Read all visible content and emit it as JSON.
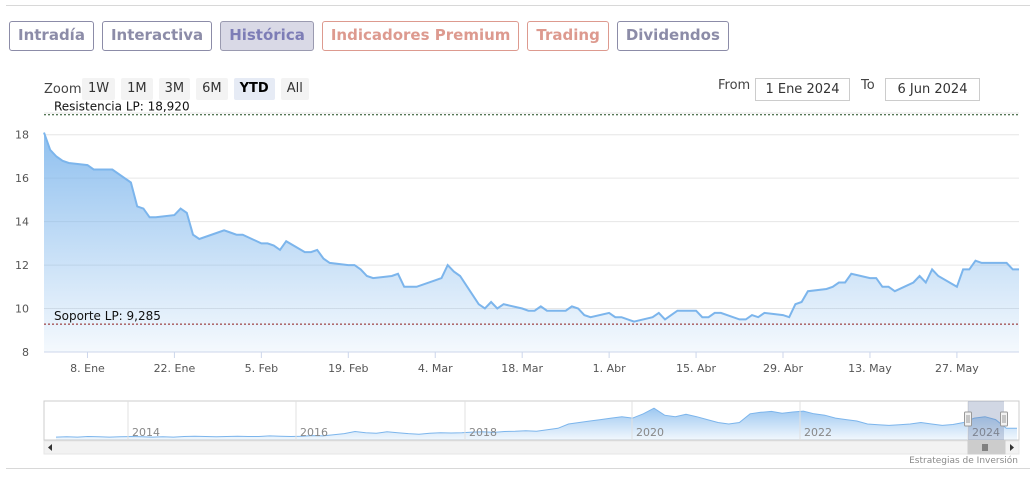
{
  "tabs": [
    {
      "label": "Intradía",
      "color": "#8c8ca8"
    },
    {
      "label": "Interactiva",
      "color": "#8c8ca8"
    },
    {
      "label": "Histórica",
      "color": "#7d7db6",
      "active": true
    },
    {
      "label": "Indicadores Premium",
      "color": "#dd9a8f"
    },
    {
      "label": "Trading",
      "color": "#dd9a8f"
    },
    {
      "label": "Dividendos",
      "color": "#8c8ca8"
    }
  ],
  "zoom": {
    "label": "Zoom",
    "buttons": [
      "1W",
      "1M",
      "3M",
      "6M",
      "YTD",
      "All"
    ],
    "active": "YTD"
  },
  "range": {
    "from_label": "From",
    "from_value": "1 Ene 2024",
    "to_label": "To",
    "to_value": "6 Jun 2024"
  },
  "credits": "Estrategias de Inversión",
  "colors": {
    "series_line": "#7cb5ec",
    "resistance": "#1f4a1f",
    "support": "#8b1a1a"
  },
  "chart_data": {
    "type": "area",
    "ylim": [
      8,
      19
    ],
    "yticks": [
      8,
      10,
      12,
      14,
      16,
      18
    ],
    "grid": true,
    "x_tick_labels": [
      "8. Ene",
      "22. Ene",
      "5. Feb",
      "19. Feb",
      "4. Mar",
      "18. Mar",
      "1. Abr",
      "15. Abr",
      "29. Abr",
      "13. May",
      "27. May"
    ],
    "x_tick_dates": [
      "2024-01-08",
      "2024-01-22",
      "2024-02-05",
      "2024-02-19",
      "2024-03-04",
      "2024-03-18",
      "2024-04-01",
      "2024-04-15",
      "2024-04-29",
      "2024-05-13",
      "2024-05-27"
    ],
    "x": [
      "2024-01-01",
      "2024-01-02",
      "2024-01-03",
      "2024-01-04",
      "2024-01-05",
      "2024-01-08",
      "2024-01-09",
      "2024-01-10",
      "2024-01-11",
      "2024-01-12",
      "2024-01-15",
      "2024-01-16",
      "2024-01-17",
      "2024-01-18",
      "2024-01-19",
      "2024-01-22",
      "2024-01-23",
      "2024-01-24",
      "2024-01-25",
      "2024-01-26",
      "2024-01-29",
      "2024-01-30",
      "2024-01-31",
      "2024-02-01",
      "2024-02-02",
      "2024-02-05",
      "2024-02-06",
      "2024-02-07",
      "2024-02-08",
      "2024-02-09",
      "2024-02-12",
      "2024-02-13",
      "2024-02-14",
      "2024-02-15",
      "2024-02-16",
      "2024-02-19",
      "2024-02-20",
      "2024-02-21",
      "2024-02-22",
      "2024-02-23",
      "2024-02-26",
      "2024-02-27",
      "2024-02-28",
      "2024-02-29",
      "2024-03-01",
      "2024-03-04",
      "2024-03-05",
      "2024-03-06",
      "2024-03-07",
      "2024-03-08",
      "2024-03-11",
      "2024-03-12",
      "2024-03-13",
      "2024-03-14",
      "2024-03-15",
      "2024-03-18",
      "2024-03-19",
      "2024-03-20",
      "2024-03-21",
      "2024-03-22",
      "2024-03-25",
      "2024-03-26",
      "2024-03-27",
      "2024-03-28",
      "2024-03-29",
      "2024-04-01",
      "2024-04-02",
      "2024-04-03",
      "2024-04-04",
      "2024-04-05",
      "2024-04-08",
      "2024-04-09",
      "2024-04-10",
      "2024-04-11",
      "2024-04-12",
      "2024-04-15",
      "2024-04-16",
      "2024-04-17",
      "2024-04-18",
      "2024-04-19",
      "2024-04-22",
      "2024-04-23",
      "2024-04-24",
      "2024-04-25",
      "2024-04-26",
      "2024-04-29",
      "2024-04-30",
      "2024-05-01",
      "2024-05-02",
      "2024-05-03",
      "2024-05-06",
      "2024-05-07",
      "2024-05-08",
      "2024-05-09",
      "2024-05-10",
      "2024-05-13",
      "2024-05-14",
      "2024-05-15",
      "2024-05-16",
      "2024-05-17",
      "2024-05-20",
      "2024-05-21",
      "2024-05-22",
      "2024-05-23",
      "2024-05-24",
      "2024-05-27",
      "2024-05-28",
      "2024-05-29",
      "2024-05-30",
      "2024-05-31",
      "2024-06-03",
      "2024-06-04",
      "2024-06-05",
      "2024-06-06"
    ],
    "series": [
      {
        "values": [
          18.1,
          17.3,
          17.0,
          16.8,
          16.7,
          16.6,
          16.4,
          16.4,
          16.4,
          16.4,
          15.8,
          14.7,
          14.6,
          14.2,
          14.2,
          14.3,
          14.6,
          14.4,
          13.4,
          13.2,
          13.5,
          13.6,
          13.5,
          13.4,
          13.4,
          13.0,
          13.0,
          12.9,
          12.7,
          13.1,
          12.6,
          12.6,
          12.7,
          12.3,
          12.1,
          12.0,
          12.0,
          11.8,
          11.5,
          11.4,
          11.5,
          11.6,
          11.0,
          11.0,
          11.0,
          11.3,
          11.4,
          12.0,
          11.7,
          11.5,
          10.2,
          10.0,
          10.3,
          10.0,
          10.2,
          10.0,
          9.9,
          9.9,
          10.1,
          9.9,
          9.9,
          10.1,
          10.0,
          9.7,
          9.6,
          9.8,
          9.6,
          9.6,
          9.5,
          9.4,
          9.6,
          9.8,
          9.5,
          9.7,
          9.9,
          9.9,
          9.6,
          9.6,
          9.8,
          9.8,
          9.5,
          9.5,
          9.7,
          9.6,
          9.8,
          9.7,
          9.6,
          10.2,
          10.3,
          10.8,
          10.9,
          11.0,
          11.2,
          11.2,
          11.6,
          11.4,
          11.4,
          11.0,
          11.0,
          10.8,
          11.2,
          11.5,
          11.2,
          11.8,
          11.5,
          11.0,
          11.8,
          11.8,
          12.2,
          12.1,
          12.1,
          12.1,
          11.8,
          11.8
        ]
      }
    ],
    "plot_lines": [
      {
        "label": "Resistencia LP: 18,920",
        "value": 18.92
      },
      {
        "label": "Soporte LP: 9,285",
        "value": 9.285
      }
    ],
    "navigator": {
      "year_labels": [
        "2014",
        "2016",
        "2018",
        "2020",
        "2022",
        "2024"
      ],
      "values": [
        9.0,
        9.1,
        9.0,
        9.2,
        9.1,
        9.0,
        9.1,
        9.2,
        9.1,
        9.0,
        9.1,
        9.0,
        9.2,
        9.3,
        9.2,
        9.1,
        9.2,
        9.3,
        9.2,
        9.2,
        9.4,
        9.3,
        9.2,
        9.3,
        9.5,
        9.4,
        9.8,
        10.2,
        10.9,
        10.5,
        10.3,
        10.8,
        10.5,
        10.2,
        10.0,
        10.3,
        10.5,
        10.4,
        10.5,
        10.7,
        10.8,
        10.6,
        10.9,
        11.0,
        11.2,
        11.0,
        11.5,
        12.0,
        13.5,
        14.0,
        14.5,
        15.0,
        15.5,
        16.0,
        15.5,
        17.0,
        18.9,
        16.5,
        16.0,
        16.8,
        16.0,
        15.0,
        14.0,
        13.5,
        14.0,
        17.0,
        17.5,
        17.8,
        17.2,
        17.6,
        17.9,
        17.0,
        16.5,
        15.5,
        15.0,
        14.5,
        13.5,
        13.2,
        13.0,
        13.2,
        13.5,
        14.0,
        13.5,
        13.0,
        13.3,
        14.0,
        15.5,
        16.0,
        15.0,
        12.0,
        12.0
      ]
    }
  }
}
